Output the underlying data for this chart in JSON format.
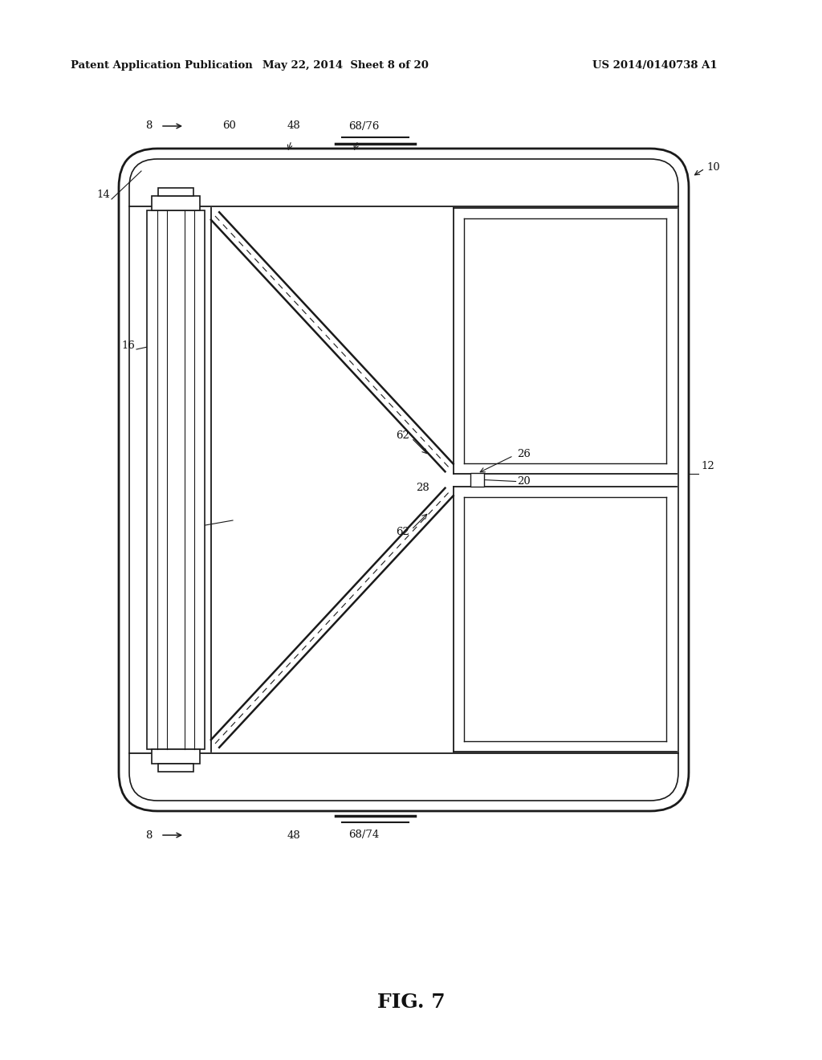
{
  "bg_color": "#ffffff",
  "lc": "#1a1a1a",
  "header_left": "Patent Application Publication",
  "header_mid": "May 22, 2014  Sheet 8 of 20",
  "header_right": "US 2014/0140738 A1",
  "fig_label": "FIG. 7"
}
